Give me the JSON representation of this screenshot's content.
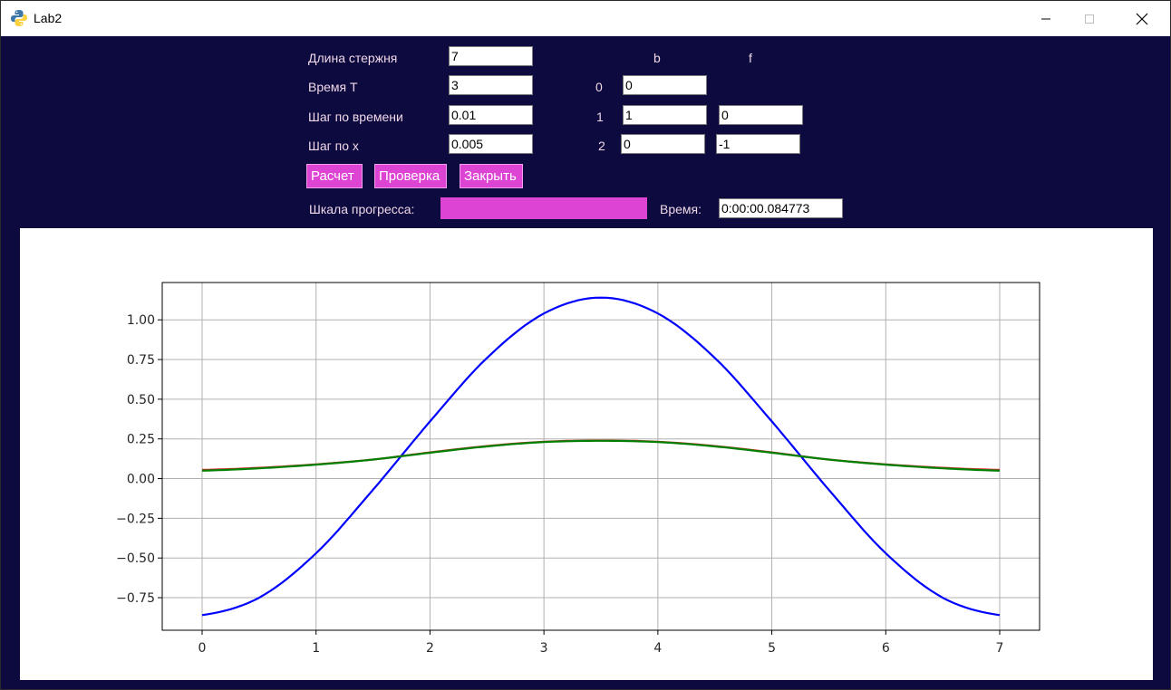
{
  "window": {
    "title": "Lab2",
    "icon": "python-icon",
    "controls": [
      "minimize-icon",
      "maximize-icon",
      "close-icon"
    ]
  },
  "form": {
    "length_label": "Длина стержня",
    "length_value": "7",
    "time_label": "Время T",
    "time_value": "3",
    "dt_label": "Шаг по времени",
    "dt_value": "0.01",
    "dx_label": "Шаг по x",
    "dx_value": "0.005",
    "col_b": "b",
    "col_f": "f",
    "rows": [
      {
        "index": "0",
        "b": "0",
        "f": null
      },
      {
        "index": "1",
        "b": "1",
        "f": "0"
      },
      {
        "index": "2",
        "b": "0",
        "f": "-1"
      }
    ]
  },
  "buttons": {
    "calc": "Расчет",
    "check": "Проверка",
    "close": "Закрыть"
  },
  "status": {
    "progress_label": "Шкала прогресса:",
    "progress_fraction": 1.0,
    "time_label": "Время:",
    "time_value": "0:00:00.084773"
  },
  "colors": {
    "background": "#0c0a3e",
    "accent": "#dd44d4",
    "label_text": "#f0d8e8",
    "series_blue": "#0000ff",
    "series_red": "#d62728",
    "series_green": "#008000"
  },
  "chart_data": {
    "type": "line",
    "title": "",
    "xlabel": "",
    "ylabel": "",
    "xlim": [
      -0.35,
      7.35
    ],
    "ylim": [
      -0.955,
      1.235
    ],
    "xticks": [
      0,
      1,
      2,
      3,
      4,
      5,
      6,
      7
    ],
    "xtick_labels": [
      "0",
      "1",
      "2",
      "3",
      "4",
      "5",
      "6",
      "7"
    ],
    "yticks": [
      -0.75,
      -0.5,
      -0.25,
      0.0,
      0.25,
      0.5,
      0.75,
      1.0
    ],
    "ytick_labels": [
      "−0.75",
      "−0.50",
      "−0.25",
      "0.00",
      "0.25",
      "0.50",
      "0.75",
      "1.00"
    ],
    "grid": true,
    "x": [
      0,
      0.5,
      1,
      1.5,
      2,
      2.5,
      3,
      3.5,
      4,
      4.5,
      5,
      5.5,
      6,
      6.5,
      7
    ],
    "series": [
      {
        "color": "#0000ff",
        "values": [
          -0.86,
          -0.75,
          -0.47,
          -0.07,
          0.36,
          0.76,
          1.04,
          1.14,
          1.04,
          0.76,
          0.36,
          -0.07,
          -0.47,
          -0.75,
          -0.86
        ]
      },
      {
        "color": "#d62728",
        "values": [
          0.055,
          0.068,
          0.09,
          0.12,
          0.165,
          0.205,
          0.232,
          0.24,
          0.232,
          0.205,
          0.165,
          0.12,
          0.09,
          0.068,
          0.055
        ]
      },
      {
        "color": "#008000",
        "values": [
          0.05,
          0.065,
          0.088,
          0.12,
          0.163,
          0.203,
          0.23,
          0.238,
          0.23,
          0.203,
          0.163,
          0.12,
          0.088,
          0.065,
          0.05
        ]
      }
    ]
  }
}
